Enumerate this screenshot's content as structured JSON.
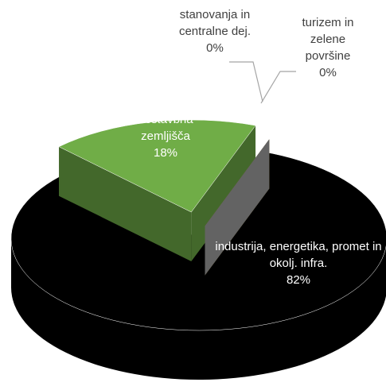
{
  "chart_data": {
    "type": "pie3d",
    "categories": [
      "industrija, energetika, promet in okolj. infra.",
      "nestavbna zemljišča",
      "stanovanja in centralne dej.",
      "turizem in zelene površine"
    ],
    "values": [
      82,
      18,
      0,
      0
    ],
    "value_labels": [
      "82%",
      "18%",
      "0%",
      "0%"
    ],
    "colors": [
      "#000000",
      "#70ad47",
      "#a5a5a5",
      "#c89800"
    ]
  }
}
